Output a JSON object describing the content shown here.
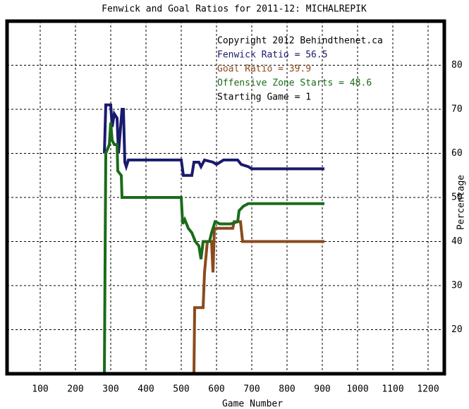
{
  "chart_data": {
    "type": "line",
    "title": "Fenwick and Goal Ratios for 2011-12: MICHALREPIK",
    "x_label": "Game Number",
    "y_label": "Percentage",
    "xlim": [
      6,
      1246
    ],
    "ylim": [
      10,
      90
    ],
    "xticks": [
      100,
      200,
      300,
      400,
      500,
      600,
      700,
      800,
      900,
      1000,
      1100,
      1200
    ],
    "yticks": [
      20,
      30,
      40,
      50,
      60,
      70,
      80
    ],
    "grid": true,
    "annotations": [
      {
        "text": "Copyright 2012 Behindthenet.ca",
        "color": "#000000"
      },
      {
        "text": "Fenwick Ratio = 56.5",
        "color": "#1a1a6e"
      },
      {
        "text": "Goal Ratio = 39.9",
        "color": "#8b4a1c"
      },
      {
        "text": "Offensive Zone Starts = 48.6",
        "color": "#1a6b1a"
      },
      {
        "text": "Starting Game = 1",
        "color": "#000000"
      }
    ],
    "series": [
      {
        "name": "Fenwick Ratio",
        "color": "#1a1a6e",
        "x": [
          282,
          286,
          300,
          304,
          310,
          318,
          322,
          332,
          336,
          340,
          344,
          350,
          500,
          506,
          530,
          536,
          550,
          556,
          566,
          590,
          600,
          620,
          660,
          670,
          690,
          700,
          906
        ],
        "values": [
          60,
          71,
          71,
          66,
          69,
          68,
          60,
          70,
          70,
          58,
          57,
          58.5,
          58.5,
          55,
          55,
          58,
          58,
          57,
          58.5,
          58,
          57.5,
          58.5,
          58.5,
          57.5,
          57,
          56.5,
          56.5
        ]
      },
      {
        "name": "Goal Ratio",
        "color": "#8b4a1c",
        "x": [
          536,
          538,
          562,
          566,
          574,
          586,
          590,
          594,
          610,
          646,
          650,
          668,
          674,
          906
        ],
        "values": [
          10,
          25,
          25,
          33,
          40,
          40,
          33,
          43,
          43,
          43,
          44.5,
          44.5,
          40,
          40
        ]
      },
      {
        "name": "Offensive Zone Starts",
        "color": "#1a6b1a",
        "x": [
          282,
          284,
          286,
          296,
          300,
          304,
          310,
          318,
          320,
          330,
          332,
          340,
          500,
          504,
          510,
          520,
          530,
          540,
          550,
          556,
          562,
          580,
          586,
          596,
          610,
          640,
          660,
          664,
          676,
          690,
          906
        ],
        "values": [
          10,
          36,
          60,
          62,
          67,
          63,
          62,
          62,
          56,
          55,
          50,
          50,
          50,
          44,
          45,
          43,
          42,
          40,
          39,
          36,
          40,
          40,
          42,
          44.5,
          44,
          44,
          44.5,
          47,
          48,
          48.6,
          48.6
        ]
      }
    ]
  }
}
